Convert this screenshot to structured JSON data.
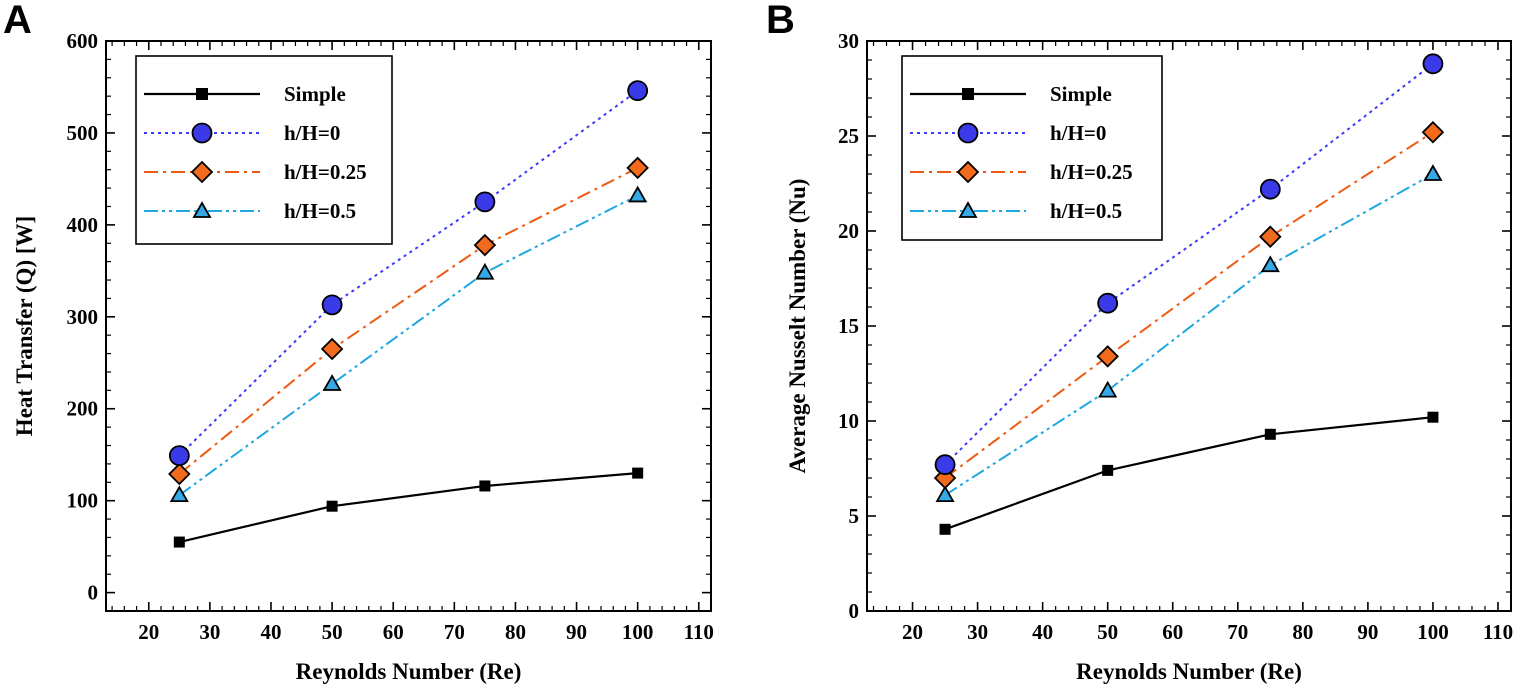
{
  "colors": {
    "simple": "#000000",
    "h0_line": "#3b3bff",
    "h0_marker": "#3a3ae8",
    "h025_line": "#ee5a12",
    "h025_marker": "#f26a1b",
    "h05_line": "#1ea7e0",
    "h05_marker": "#35a9e5"
  },
  "chart_data": [
    {
      "panel": "A",
      "type": "line",
      "xlabel": "Reynolds Number (Re)",
      "ylabel": "Heat Transfer (Q) [W]",
      "xlim": [
        13,
        112
      ],
      "ylim": [
        -20,
        600
      ],
      "xticks": [
        20,
        30,
        40,
        50,
        60,
        70,
        80,
        90,
        100,
        110
      ],
      "yticks": [
        0,
        100,
        200,
        300,
        400,
        500,
        600
      ],
      "legend_position": "top-left",
      "series": [
        {
          "name": "Simple",
          "style": "simple",
          "x": [
            25,
            50,
            75,
            100
          ],
          "y": [
            55,
            94,
            116,
            130
          ]
        },
        {
          "name": "h/H=0",
          "style": "h0",
          "x": [
            25,
            50,
            75,
            100
          ],
          "y": [
            149,
            313,
            425,
            546
          ]
        },
        {
          "name": "h/H=0.25",
          "style": "h025",
          "x": [
            25,
            50,
            75,
            100
          ],
          "y": [
            129,
            265,
            378,
            462
          ]
        },
        {
          "name": "h/H=0.5",
          "style": "h05",
          "x": [
            25,
            50,
            75,
            100
          ],
          "y": [
            106,
            227,
            348,
            432
          ]
        }
      ]
    },
    {
      "panel": "B",
      "type": "line",
      "xlabel": "Reynolds Number (Re)",
      "ylabel": "Average Nusselt Number (Nu)",
      "xlim": [
        13,
        112
      ],
      "ylim": [
        0,
        30
      ],
      "xticks": [
        20,
        30,
        40,
        50,
        60,
        70,
        80,
        90,
        100,
        110
      ],
      "yticks": [
        0,
        5,
        10,
        15,
        20,
        25,
        30
      ],
      "legend_position": "top-left",
      "series": [
        {
          "name": "Simple",
          "style": "simple",
          "x": [
            25,
            50,
            75,
            100
          ],
          "y": [
            4.3,
            7.4,
            9.3,
            10.2
          ]
        },
        {
          "name": "h/H=0",
          "style": "h0",
          "x": [
            25,
            50,
            75,
            100
          ],
          "y": [
            7.7,
            16.2,
            22.2,
            28.8
          ]
        },
        {
          "name": "h/H=0.25",
          "style": "h025",
          "x": [
            25,
            50,
            75,
            100
          ],
          "y": [
            7.0,
            13.4,
            19.7,
            25.2
          ]
        },
        {
          "name": "h/H=0.5",
          "style": "h05",
          "x": [
            25,
            50,
            75,
            100
          ],
          "y": [
            6.1,
            11.6,
            18.2,
            23.0
          ]
        }
      ]
    }
  ]
}
